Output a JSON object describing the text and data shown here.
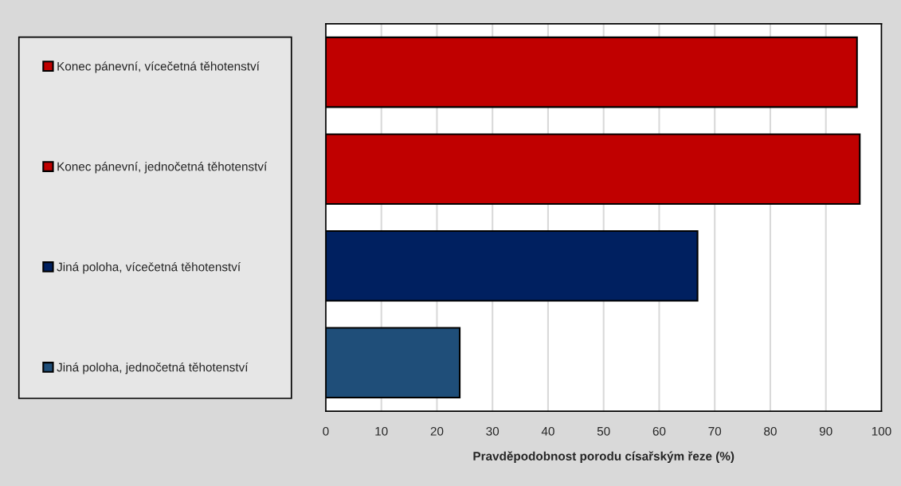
{
  "chart_data": {
    "type": "bar",
    "orientation": "horizontal",
    "categories": [
      null,
      null,
      null,
      null
    ],
    "series": [
      {
        "name": "Konec pánevní, vícečetná těhotenství",
        "color": "#c00000",
        "values": [
          95.6,
          null,
          null,
          null
        ]
      },
      {
        "name": "Konec pánevní, jednočetná těhotenství",
        "color": "#c00000",
        "values": [
          null,
          96.1,
          null,
          null
        ]
      },
      {
        "name": "Jiná poloha, vícečetná těhotenství",
        "color": "#002060",
        "values": [
          null,
          null,
          66.9,
          null
        ]
      },
      {
        "name": "Jiná poloha, jednočetná těhotenství",
        "color": "#1f4e79",
        "values": [
          null,
          null,
          null,
          24.1
        ]
      }
    ],
    "xlabel": "Pravděpodobnost porodu císařským řeze (%)",
    "xlim": [
      0,
      100
    ],
    "xticks": [
      0,
      10,
      20,
      30,
      40,
      50,
      60,
      70,
      80,
      90,
      100
    ],
    "grid": "x",
    "legend": "left"
  }
}
